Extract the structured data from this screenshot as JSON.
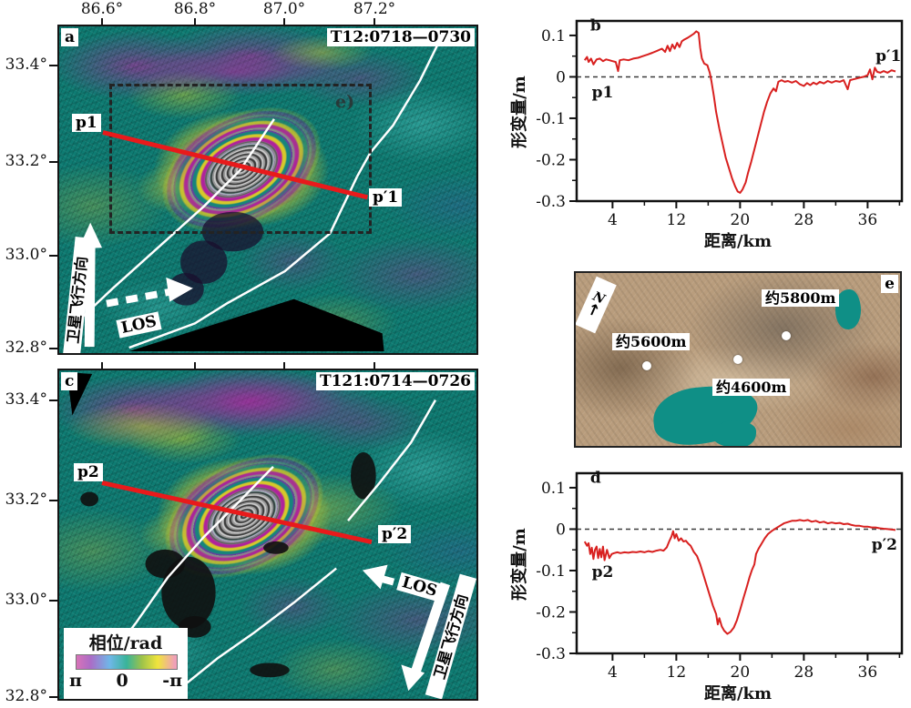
{
  "colors": {
    "map_teal": "#0e7b72",
    "fringe_magenta": "#b0229b",
    "fringe_yellow": "#d6c82a",
    "cyan": "#67e3df",
    "profile_red": "#e81a1b",
    "curve_red": "#d8201f",
    "fault_white": "#ffffff",
    "lake_teal": "#0f8f86"
  },
  "panel_a": {
    "corner_label": "a",
    "title": "T12:0718—0730",
    "lon_ticks": [
      "86.6°",
      "86.8°",
      "87.0°",
      "87.2°"
    ],
    "lat_ticks": [
      "33.4°",
      "33.2°",
      "33.0°",
      "32.8°"
    ],
    "profile_start": "p1",
    "profile_end": "p′1",
    "inset_box_label": "e)",
    "flight_label": "卫星飞行方向",
    "los_label": "LOS"
  },
  "panel_c": {
    "corner_label": "c",
    "title": "T121:0714—0726",
    "lat_ticks": [
      "33.4°",
      "33.2°",
      "33.0°",
      "32.8°"
    ],
    "profile_start": "p2",
    "profile_end": "p′2",
    "flight_label": "卫星飞行方向",
    "los_label": "LOS",
    "legend": {
      "title": "相位/rad",
      "tick_left": "π",
      "tick_center": "0",
      "tick_right": "-π"
    }
  },
  "panel_e": {
    "corner_label": "e",
    "north_label": "N",
    "north_arrow": "↑",
    "elevations": [
      "约5600m",
      "约5800m",
      "约4600m"
    ]
  },
  "chart_data": [
    {
      "id": "b",
      "type": "line",
      "panel_label": "b",
      "xlabel": "距离/km",
      "ylabel": "形变量/m",
      "xlim": [
        -0.5,
        40.3
      ],
      "ylim": [
        -0.3,
        0.135
      ],
      "xticks": [
        {
          "v": 4,
          "label": "4"
        },
        {
          "v": 12,
          "label": "12"
        },
        {
          "v": 20,
          "label": "20"
        },
        {
          "v": 28,
          "label": "28"
        },
        {
          "v": 36,
          "label": "36"
        }
      ],
      "xticks_minor": [
        8,
        16,
        24,
        32,
        40
      ],
      "yticks": [
        {
          "v": 0.1,
          "label": "0.1"
        },
        {
          "v": 0,
          "label": "0"
        },
        {
          "v": -0.1,
          "label": "-0.1"
        },
        {
          "v": -0.2,
          "label": "-0.2"
        },
        {
          "v": -0.3,
          "label": "-0.3"
        }
      ],
      "yticks_minor": [
        0.05,
        -0.05,
        -0.15,
        -0.25
      ],
      "zero_line": true,
      "annotations": [
        {
          "text": "b",
          "x": 1.2,
          "y": 0.112
        },
        {
          "text": "p1",
          "x": 1.4,
          "y": -0.05
        },
        {
          "text": "p′1",
          "x": 37,
          "y": 0.038
        }
      ],
      "series": [
        {
          "name": "LOS deformation along p1–p′1",
          "color": "#d8201f",
          "points": [
            [
              0.5,
              0.04
            ],
            [
              0.8,
              0.048
            ],
            [
              1.0,
              0.036
            ],
            [
              1.3,
              0.044
            ],
            [
              1.6,
              0.03
            ],
            [
              2.0,
              0.042
            ],
            [
              2.4,
              0.044
            ],
            [
              2.8,
              0.038
            ],
            [
              3.2,
              0.042
            ],
            [
              3.6,
              0.04
            ],
            [
              4.0,
              0.038
            ],
            [
              4.4,
              0.036
            ],
            [
              4.7,
              0.014
            ],
            [
              4.9,
              0.04
            ],
            [
              5.4,
              0.042
            ],
            [
              6.0,
              0.04
            ],
            [
              6.6,
              0.044
            ],
            [
              7.2,
              0.046
            ],
            [
              7.8,
              0.05
            ],
            [
              8.4,
              0.054
            ],
            [
              9.0,
              0.058
            ],
            [
              9.6,
              0.063
            ],
            [
              10.2,
              0.068
            ],
            [
              10.6,
              0.06
            ],
            [
              10.9,
              0.075
            ],
            [
              11.2,
              0.062
            ],
            [
              11.5,
              0.078
            ],
            [
              11.8,
              0.068
            ],
            [
              12.1,
              0.082
            ],
            [
              12.4,
              0.072
            ],
            [
              12.7,
              0.086
            ],
            [
              13.0,
              0.09
            ],
            [
              13.4,
              0.094
            ],
            [
              13.8,
              0.099
            ],
            [
              14.2,
              0.104
            ],
            [
              14.5,
              0.11
            ],
            [
              14.8,
              0.106
            ],
            [
              15.0,
              0.07
            ],
            [
              15.2,
              0.045
            ],
            [
              15.5,
              0.032
            ],
            [
              15.9,
              0.028
            ],
            [
              16.2,
              0.01
            ],
            [
              16.4,
              -0.01
            ],
            [
              16.7,
              -0.045
            ],
            [
              17.0,
              -0.085
            ],
            [
              17.4,
              -0.125
            ],
            [
              17.8,
              -0.16
            ],
            [
              18.2,
              -0.195
            ],
            [
              18.6,
              -0.22
            ],
            [
              19.0,
              -0.245
            ],
            [
              19.4,
              -0.265
            ],
            [
              19.7,
              -0.277
            ],
            [
              20.0,
              -0.28
            ],
            [
              20.3,
              -0.272
            ],
            [
              20.7,
              -0.255
            ],
            [
              21.0,
              -0.232
            ],
            [
              21.4,
              -0.205
            ],
            [
              21.8,
              -0.175
            ],
            [
              22.2,
              -0.145
            ],
            [
              22.6,
              -0.115
            ],
            [
              23.0,
              -0.085
            ],
            [
              23.4,
              -0.06
            ],
            [
              23.8,
              -0.04
            ],
            [
              24.2,
              -0.028
            ],
            [
              24.5,
              -0.035
            ],
            [
              24.8,
              -0.012
            ],
            [
              25.2,
              -0.008
            ],
            [
              25.6,
              -0.012
            ],
            [
              26.0,
              -0.01
            ],
            [
              26.5,
              -0.014
            ],
            [
              27.0,
              -0.01
            ],
            [
              27.5,
              -0.018
            ],
            [
              28.0,
              -0.022
            ],
            [
              28.4,
              -0.015
            ],
            [
              28.8,
              -0.02
            ],
            [
              29.2,
              -0.014
            ],
            [
              29.6,
              -0.018
            ],
            [
              30.0,
              -0.012
            ],
            [
              30.5,
              -0.016
            ],
            [
              31.0,
              -0.01
            ],
            [
              31.5,
              -0.014
            ],
            [
              32.0,
              -0.01
            ],
            [
              32.5,
              -0.012
            ],
            [
              33.0,
              -0.008
            ],
            [
              33.5,
              -0.03
            ],
            [
              33.8,
              -0.008
            ],
            [
              34.2,
              -0.006
            ],
            [
              34.6,
              -0.004
            ],
            [
              35.0,
              -0.002
            ],
            [
              35.5,
              0.0
            ],
            [
              36.0,
              0.004
            ],
            [
              36.3,
              0.018
            ],
            [
              36.6,
              -0.006
            ],
            [
              36.9,
              0.022
            ],
            [
              37.2,
              0.012
            ],
            [
              37.6,
              0.01
            ],
            [
              38.0,
              0.014
            ],
            [
              38.5,
              0.01
            ],
            [
              39.0,
              0.016
            ],
            [
              39.5,
              0.013
            ]
          ]
        }
      ]
    },
    {
      "id": "d",
      "type": "line",
      "panel_label": "d",
      "xlabel": "距离/km",
      "ylabel": "形变量/m",
      "xlim": [
        -0.5,
        40.3
      ],
      "ylim": [
        -0.3,
        0.135
      ],
      "xticks": [
        {
          "v": 4,
          "label": "4"
        },
        {
          "v": 12,
          "label": "12"
        },
        {
          "v": 20,
          "label": "20"
        },
        {
          "v": 28,
          "label": "28"
        },
        {
          "v": 36,
          "label": "36"
        }
      ],
      "xticks_minor": [
        8,
        16,
        24,
        32,
        40
      ],
      "yticks": [
        {
          "v": 0.1,
          "label": "0.1"
        },
        {
          "v": 0,
          "label": "0"
        },
        {
          "v": -0.1,
          "label": "-0.1"
        },
        {
          "v": -0.2,
          "label": "-0.2"
        },
        {
          "v": -0.3,
          "label": "-0.3"
        }
      ],
      "yticks_minor": [
        0.05,
        -0.05,
        -0.15,
        -0.25
      ],
      "zero_line": true,
      "annotations": [
        {
          "text": "d",
          "x": 1.2,
          "y": 0.112
        },
        {
          "text": "p2",
          "x": 1.4,
          "y": -0.115
        },
        {
          "text": "p′2",
          "x": 36.5,
          "y": -0.05
        }
      ],
      "series": [
        {
          "name": "LOS deformation along p2–p′2",
          "color": "#d8201f",
          "points": [
            [
              0.5,
              -0.03
            ],
            [
              0.8,
              -0.04
            ],
            [
              1.0,
              -0.034
            ],
            [
              1.2,
              -0.06
            ],
            [
              1.4,
              -0.045
            ],
            [
              1.6,
              -0.072
            ],
            [
              1.8,
              -0.05
            ],
            [
              2.0,
              -0.042
            ],
            [
              2.2,
              -0.07
            ],
            [
              2.4,
              -0.048
            ],
            [
              2.6,
              -0.068
            ],
            [
              2.8,
              -0.042
            ],
            [
              3.0,
              -0.075
            ],
            [
              3.3,
              -0.05
            ],
            [
              3.6,
              -0.07
            ],
            [
              3.9,
              -0.06
            ],
            [
              4.2,
              -0.058
            ],
            [
              4.6,
              -0.056
            ],
            [
              5.0,
              -0.058
            ],
            [
              5.5,
              -0.056
            ],
            [
              6.0,
              -0.057
            ],
            [
              6.5,
              -0.055
            ],
            [
              7.0,
              -0.056
            ],
            [
              7.5,
              -0.054
            ],
            [
              8.0,
              -0.056
            ],
            [
              8.5,
              -0.053
            ],
            [
              9.0,
              -0.055
            ],
            [
              9.5,
              -0.052
            ],
            [
              10.0,
              -0.05
            ],
            [
              10.4,
              -0.052
            ],
            [
              10.8,
              -0.044
            ],
            [
              11.1,
              -0.03
            ],
            [
              11.4,
              -0.018
            ],
            [
              11.6,
              -0.005
            ],
            [
              11.8,
              -0.022
            ],
            [
              12.0,
              -0.012
            ],
            [
              12.3,
              -0.028
            ],
            [
              12.6,
              -0.022
            ],
            [
              12.9,
              -0.03
            ],
            [
              13.2,
              -0.028
            ],
            [
              13.5,
              -0.035
            ],
            [
              13.8,
              -0.04
            ],
            [
              14.2,
              -0.055
            ],
            [
              14.6,
              -0.065
            ],
            [
              15.0,
              -0.085
            ],
            [
              15.4,
              -0.11
            ],
            [
              15.8,
              -0.135
            ],
            [
              16.2,
              -0.16
            ],
            [
              16.6,
              -0.185
            ],
            [
              17.0,
              -0.205
            ],
            [
              17.2,
              -0.23
            ],
            [
              17.4,
              -0.215
            ],
            [
              17.7,
              -0.235
            ],
            [
              18.0,
              -0.245
            ],
            [
              18.4,
              -0.253
            ],
            [
              18.8,
              -0.248
            ],
            [
              19.2,
              -0.238
            ],
            [
              19.6,
              -0.22
            ],
            [
              20.0,
              -0.195
            ],
            [
              20.4,
              -0.168
            ],
            [
              20.8,
              -0.142
            ],
            [
              21.2,
              -0.115
            ],
            [
              21.5,
              -0.098
            ],
            [
              21.8,
              -0.085
            ],
            [
              22.0,
              -0.06
            ],
            [
              22.3,
              -0.048
            ],
            [
              22.7,
              -0.035
            ],
            [
              23.1,
              -0.022
            ],
            [
              23.5,
              -0.012
            ],
            [
              24.0,
              -0.004
            ],
            [
              24.5,
              0.002
            ],
            [
              25.0,
              0.008
            ],
            [
              25.5,
              0.014
            ],
            [
              26.0,
              0.017
            ],
            [
              26.5,
              0.02
            ],
            [
              27.0,
              0.02
            ],
            [
              27.5,
              0.022
            ],
            [
              28.0,
              0.02
            ],
            [
              28.5,
              0.022
            ],
            [
              29.0,
              0.018
            ],
            [
              29.5,
              0.02
            ],
            [
              30.0,
              0.016
            ],
            [
              30.5,
              0.018
            ],
            [
              31.0,
              0.014
            ],
            [
              31.5,
              0.016
            ],
            [
              32.0,
              0.014
            ],
            [
              32.5,
              0.015
            ],
            [
              33.0,
              0.012
            ],
            [
              33.5,
              0.013
            ],
            [
              34.0,
              0.01
            ],
            [
              34.5,
              0.008
            ],
            [
              35.0,
              0.008
            ],
            [
              35.5,
              0.006
            ],
            [
              36.0,
              0.006
            ],
            [
              36.5,
              0.004
            ],
            [
              37.0,
              0.004
            ],
            [
              37.5,
              0.002
            ],
            [
              38.0,
              0.001
            ],
            [
              38.5,
              0.0
            ],
            [
              39.0,
              -0.001
            ],
            [
              39.5,
              -0.002
            ]
          ]
        }
      ]
    }
  ]
}
